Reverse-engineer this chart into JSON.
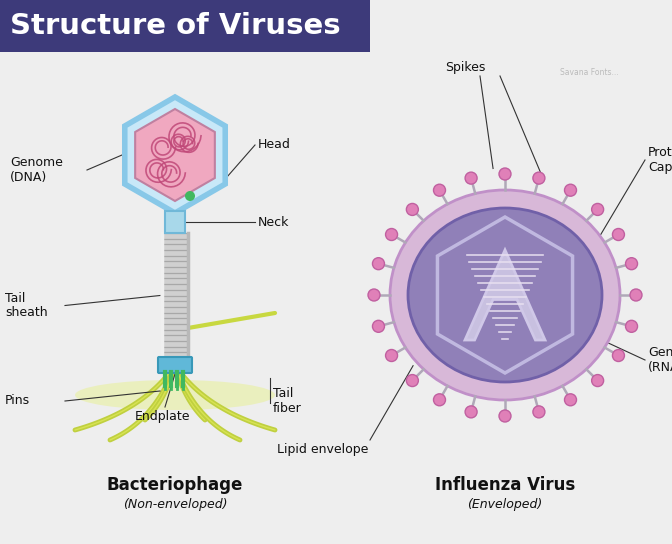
{
  "title": "Structure of Viruses",
  "title_bg": "#3d3a7a",
  "title_color": "#ffffff",
  "bg_color": "#eeeeee",
  "bacteriophage_label": "Bacteriophage",
  "bacteriophage_sub": "(Non-enveloped)",
  "influenza_label": "Influenza Virus",
  "influenza_sub": "(Enveloped)",
  "phage": {
    "head_outer_color": "#a8d8ea",
    "head_mid_color": "#c8e8f8",
    "head_inner_color": "#f0a8c0",
    "neck_color": "#a8d8ea",
    "tail_body_color": "#d8d8d8",
    "tail_stripe_color": "#a8a8a8",
    "baseplate_color": "#60b8d8",
    "pin_color": "#40b860",
    "fiber_color": "#c8d840",
    "leg_color": "#c0d040",
    "leg_highlight": "#e8f060"
  },
  "influenza": {
    "outer_envelope_color": "#d8b8d8",
    "inner_envelope_color": "#9080b8",
    "capsid_hex_color": "#b0a8d0",
    "rna_color": "#c8c0e0",
    "rna_stripe_color": "#e8e0f0",
    "spike_stem_color": "#b0a8b8",
    "spike_tip_color": "#e080b8"
  },
  "label_fontsize": 9,
  "label_color": "#111111",
  "line_color": "#333333",
  "title_fontsize": 21
}
